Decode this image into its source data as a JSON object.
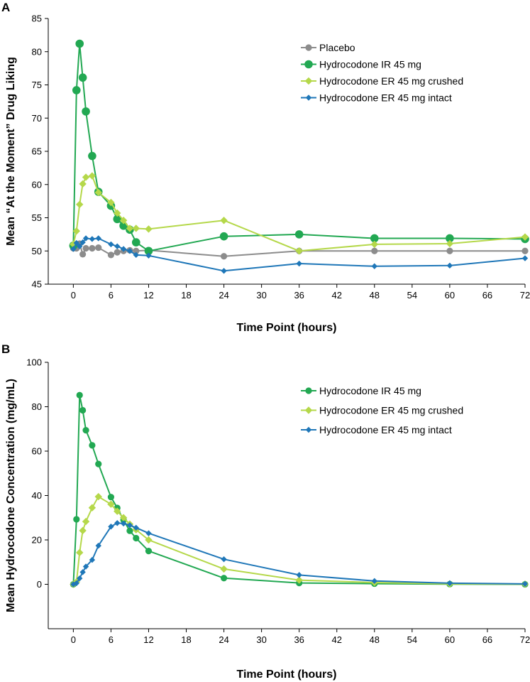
{
  "colors": {
    "placebo": "#8c8c8c",
    "ir": "#22a852",
    "er_crushed": "#b5d84a",
    "er_intact": "#1f77b8"
  },
  "chart_data": [
    {
      "panel": "A",
      "type": "line",
      "title": "",
      "xlabel": "Time Point (hours)",
      "ylabel": "Mean “At the Moment” Drug Liking",
      "xlim": [
        -4,
        72
      ],
      "ylim": [
        45,
        85
      ],
      "xticks": [
        0,
        6,
        12,
        18,
        24,
        30,
        36,
        42,
        48,
        54,
        60,
        66,
        72
      ],
      "yticks": [
        45,
        50,
        55,
        60,
        65,
        70,
        75,
        80,
        85
      ],
      "grid": false,
      "legend_position": "top-right",
      "series": [
        {
          "name": "Placebo",
          "color_key": "placebo",
          "marker": "circle",
          "x": [
            0,
            0.5,
            1,
            1.5,
            2,
            3,
            4,
            6,
            7,
            8,
            9,
            10,
            12,
            24,
            36,
            48,
            60,
            72
          ],
          "y": [
            50.4,
            50.4,
            51.1,
            49.5,
            50.4,
            50.4,
            50.5,
            49.4,
            49.8,
            50.0,
            50.1,
            50.0,
            50.1,
            49.2,
            50.0,
            50.0,
            50.0,
            50.0
          ]
        },
        {
          "name": "Hydrocodone IR 45 mg",
          "color_key": "ir",
          "marker": "circle-large",
          "x": [
            0,
            0.5,
            1,
            1.5,
            2,
            3,
            4,
            6,
            7,
            8,
            9,
            10,
            12,
            24,
            36,
            48,
            60,
            72
          ],
          "y": [
            50.8,
            74.2,
            81.2,
            76.1,
            71.0,
            64.3,
            58.9,
            56.8,
            54.8,
            53.8,
            53.2,
            51.3,
            50.0,
            52.2,
            52.5,
            51.9,
            51.9,
            51.8
          ]
        },
        {
          "name": "Hydrocodone ER 45 mg crushed",
          "color_key": "er_crushed",
          "marker": "diamond",
          "x": [
            0,
            0.5,
            1,
            1.5,
            2,
            3,
            4,
            6,
            7,
            8,
            9,
            10,
            12,
            24,
            36,
            48,
            60,
            72
          ],
          "y": [
            51.0,
            53.0,
            57.0,
            60.1,
            61.1,
            61.3,
            58.8,
            57.3,
            55.7,
            54.6,
            53.4,
            53.4,
            53.3,
            54.6,
            50.0,
            51.0,
            51.1,
            52.1
          ]
        },
        {
          "name": "Hydrocodone ER 45 mg intact",
          "color_key": "er_intact",
          "marker": "diamond-small",
          "x": [
            0,
            0.5,
            1,
            1.5,
            2,
            3,
            4,
            6,
            7,
            8,
            9,
            10,
            12,
            24,
            36,
            48,
            60,
            72
          ],
          "y": [
            50.3,
            51.2,
            50.7,
            51.3,
            51.9,
            51.8,
            51.9,
            51.0,
            50.7,
            50.3,
            50.0,
            49.4,
            49.3,
            47.0,
            48.1,
            47.7,
            47.8,
            48.9
          ]
        }
      ]
    },
    {
      "panel": "B",
      "type": "line",
      "title": "",
      "xlabel": "Time Point (hours)",
      "ylabel": "Mean Hydrocodone Concentration (mg/mL)",
      "xlim": [
        -4,
        72
      ],
      "ylim": [
        -20,
        100
      ],
      "xticks": [
        0,
        6,
        12,
        18,
        24,
        30,
        36,
        42,
        48,
        54,
        60,
        66,
        72
      ],
      "yticks": [
        0,
        20,
        40,
        60,
        80,
        100
      ],
      "grid": false,
      "legend_position": "top-right",
      "series": [
        {
          "name": "Hydrocodone IR 45 mg",
          "color_key": "ir",
          "marker": "circle",
          "x": [
            0,
            0.5,
            1,
            1.5,
            2,
            3,
            4,
            6,
            7,
            8,
            9,
            10,
            12,
            24,
            36,
            48,
            60,
            72
          ],
          "y": [
            0,
            29.3,
            85.2,
            78.4,
            69.4,
            62.6,
            54.2,
            39.3,
            34.4,
            29.0,
            24.1,
            20.8,
            15.0,
            2.8,
            0.6,
            0.3,
            0.1,
            0.0
          ]
        },
        {
          "name": "Hydrocodone ER 45 mg crushed",
          "color_key": "er_crushed",
          "marker": "diamond",
          "x": [
            0,
            0.5,
            1,
            1.5,
            2,
            3,
            4,
            6,
            7,
            8,
            9,
            10,
            12,
            24,
            36,
            48,
            60,
            72
          ],
          "y": [
            0,
            1.1,
            14.3,
            24.2,
            28.3,
            34.5,
            39.5,
            36.1,
            32.9,
            30.0,
            27.1,
            24.6,
            20.0,
            6.9,
            1.9,
            0.8,
            0.2,
            0.1
          ]
        },
        {
          "name": "Hydrocodone ER 45 mg intact",
          "color_key": "er_intact",
          "marker": "diamond-small",
          "x": [
            0,
            0.5,
            1,
            1.5,
            2,
            3,
            4,
            6,
            7,
            8,
            9,
            10,
            12,
            24,
            36,
            48,
            60,
            72
          ],
          "y": [
            0,
            0.5,
            2.7,
            5.5,
            8.0,
            11.0,
            17.4,
            26.0,
            27.6,
            27.4,
            26.6,
            25.5,
            23.0,
            11.3,
            4.2,
            1.5,
            0.5,
            0.2
          ]
        }
      ]
    }
  ]
}
